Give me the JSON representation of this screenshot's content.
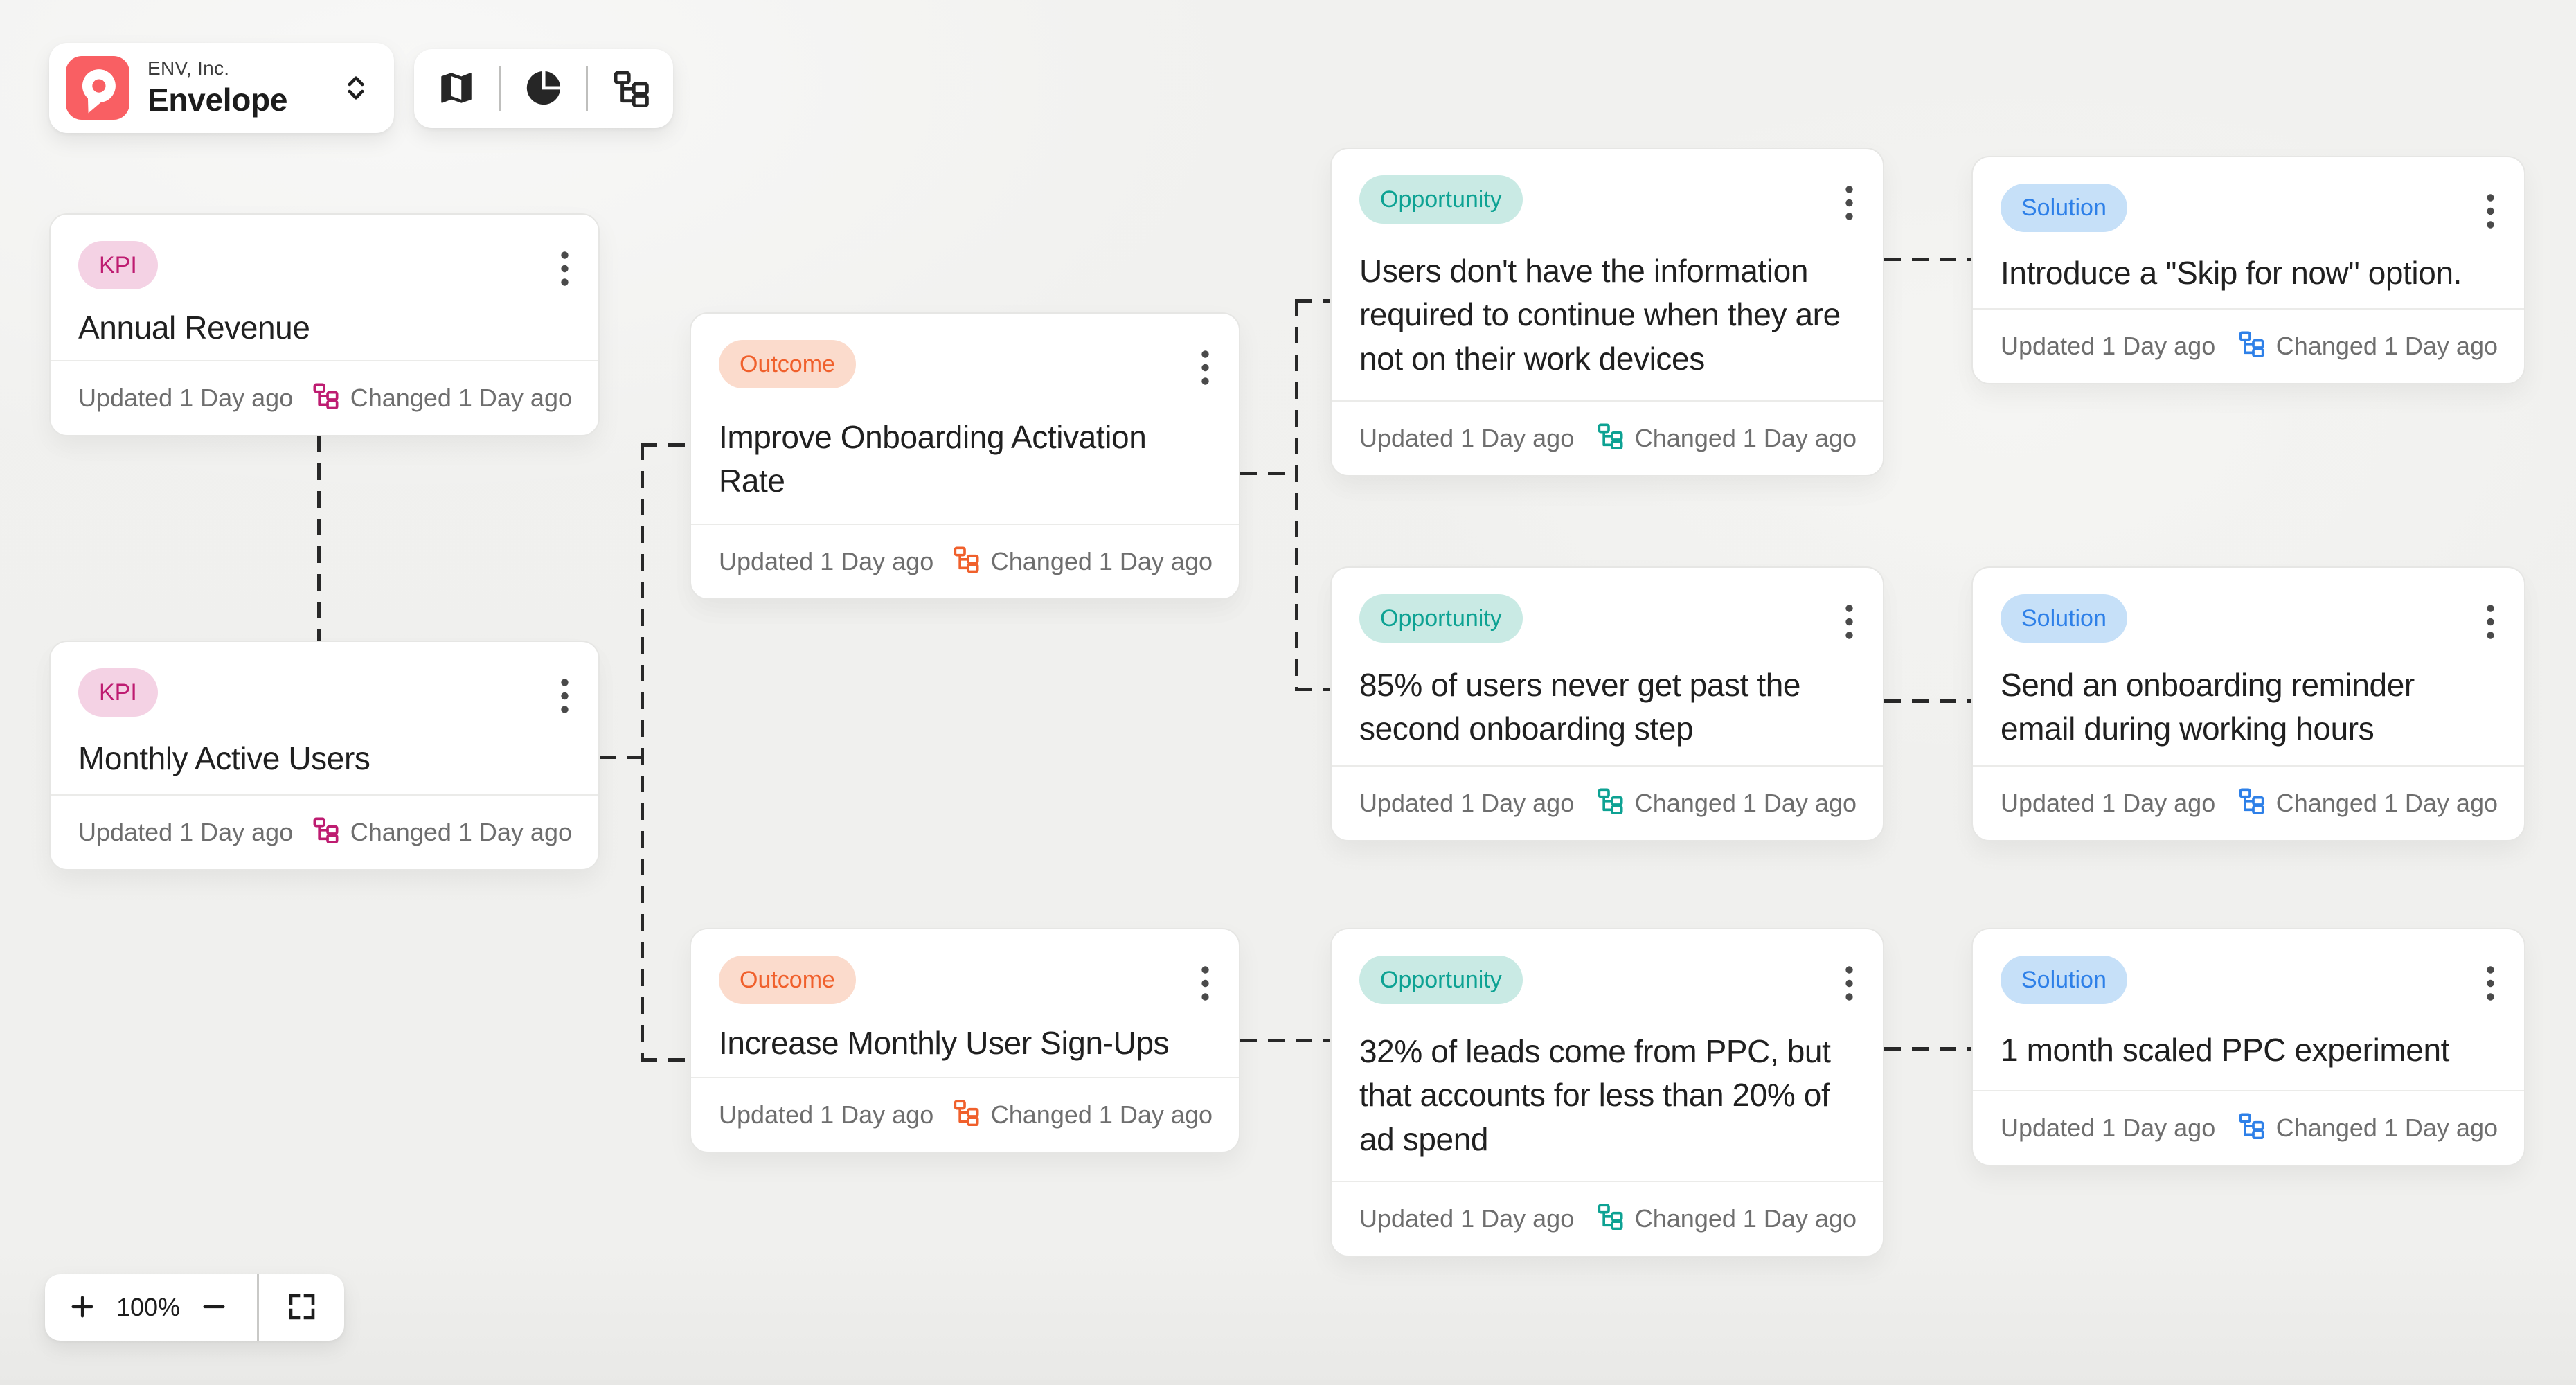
{
  "workspace": {
    "company": "ENV, Inc.",
    "name": "Envelope"
  },
  "view_toolbar": {
    "buttons": [
      {
        "icon": "map-icon",
        "name": "map-view"
      },
      {
        "icon": "pie-chart-icon",
        "name": "chart-view"
      },
      {
        "icon": "tree-icon",
        "name": "tree-view"
      }
    ]
  },
  "zoom_controls": {
    "level": "100%"
  },
  "cards": [
    {
      "id": "kpi1",
      "type": "kpi",
      "badge": "KPI",
      "title": "Annual Revenue",
      "updated": "Updated 1 Day ago",
      "changed": "Changed 1 Day ago"
    },
    {
      "id": "kpi2",
      "type": "kpi",
      "badge": "KPI",
      "title": "Monthly Active Users",
      "updated": "Updated 1 Day ago",
      "changed": "Changed 1 Day ago"
    },
    {
      "id": "outcome1",
      "type": "outcome",
      "badge": "Outcome",
      "title": "Improve Onboarding Activation Rate",
      "updated": "Updated 1 Day ago",
      "changed": "Changed 1 Day ago"
    },
    {
      "id": "outcome2",
      "type": "outcome",
      "badge": "Outcome",
      "title": "Increase Monthly User Sign-Ups",
      "updated": "Updated 1 Day ago",
      "changed": "Changed 1 Day ago"
    },
    {
      "id": "opp1",
      "type": "opportunity",
      "badge": "Opportunity",
      "title": "Users don't have the information required to continue when they are not on their work devices",
      "updated": "Updated 1 Day ago",
      "changed": "Changed 1 Day ago"
    },
    {
      "id": "opp2",
      "type": "opportunity",
      "badge": "Opportunity",
      "title": "85% of users never get past the second onboarding step",
      "updated": "Updated 1 Day ago",
      "changed": "Changed 1 Day ago"
    },
    {
      "id": "opp3",
      "type": "opportunity",
      "badge": "Opportunity",
      "title": "32% of leads come from PPC, but that accounts for less than 20% of ad spend",
      "updated": "Updated 1 Day ago",
      "changed": "Changed 1 Day ago"
    },
    {
      "id": "sol1",
      "type": "solution",
      "badge": "Solution",
      "title": "Introduce a \"Skip for now\" option.",
      "updated": "Updated 1 Day ago",
      "changed": "Changed 1 Day ago"
    },
    {
      "id": "sol2",
      "type": "solution",
      "badge": "Solution",
      "title": "Send an onboarding reminder email during working hours",
      "updated": "Updated 1 Day ago",
      "changed": "Changed 1 Day ago"
    },
    {
      "id": "sol3",
      "type": "solution",
      "badge": "Solution",
      "title": "1 month scaled PPC experiment",
      "updated": "Updated 1 Day ago",
      "changed": "Changed 1 Day ago"
    }
  ],
  "colors": {
    "logo": "#f95f63",
    "kpi_text": "#be1c71",
    "kpi_bg": "#f4d2e4",
    "outcome_text": "#f0602c",
    "outcome_bg": "#fbdbcc",
    "opportunity_text": "#0da293",
    "opportunity_bg": "#c9eae4",
    "solution_text": "#2e80e8",
    "solution_bg": "#c6e0f8",
    "connector": "#282828"
  }
}
